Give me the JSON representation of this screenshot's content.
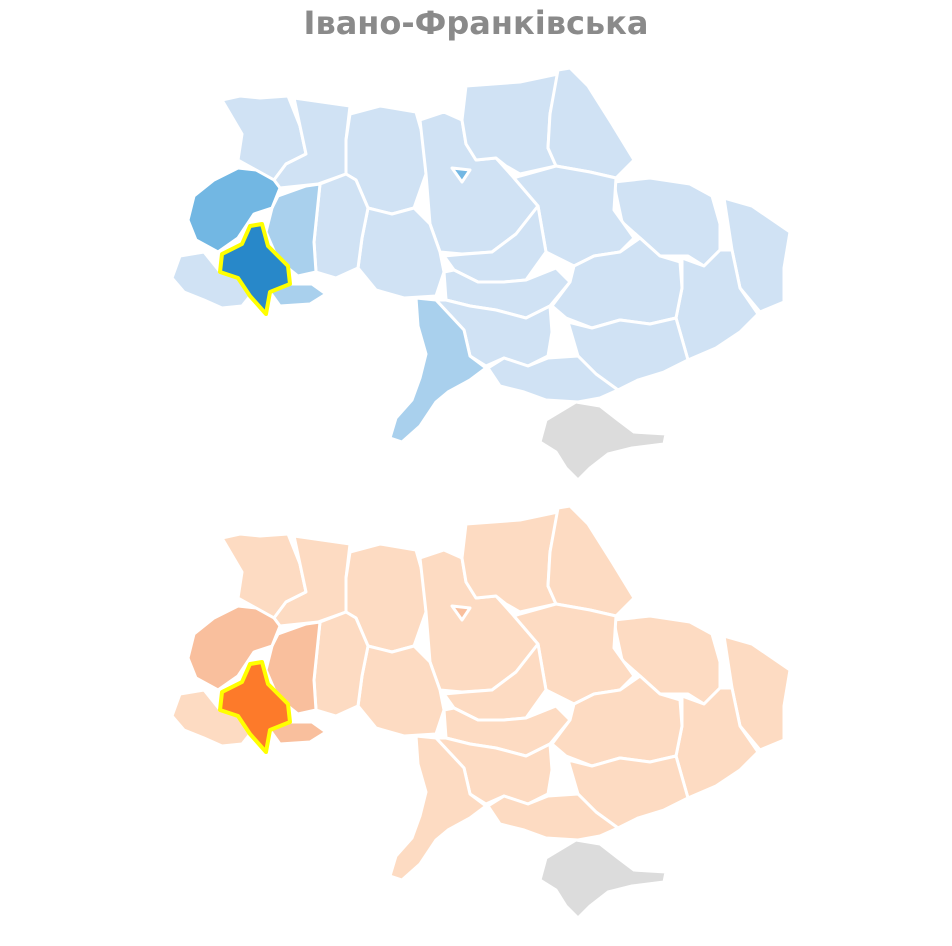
{
  "title": "Івано-Франківська",
  "colors": {
    "blue_light": "#d0e2f4",
    "blue_mid": "#a9d0ed",
    "blue_strong": "#72b7e3",
    "blue_selected": "#2888c9",
    "orange_light": "#fddbc2",
    "orange_mid": "#f9bf9d",
    "orange_selected": "#fd7a2a",
    "highlight_outline": "#ffff00",
    "crimea": "#dcdcdc",
    "border": "#ffffff"
  },
  "maps": [
    {
      "theme": "blue",
      "selected_region": "Івано-Франківська",
      "regions": [
        {
          "id": "ivano-frankivsk",
          "level": "selected"
        },
        {
          "id": "lviv",
          "level": "strong"
        },
        {
          "id": "ternopil",
          "level": "mid"
        },
        {
          "id": "chernivtsi",
          "level": "mid"
        },
        {
          "id": "odesa",
          "level": "mid"
        },
        {
          "id": "kyiv-city",
          "level": "strong"
        },
        {
          "id": "volyn",
          "level": "light"
        },
        {
          "id": "rivne",
          "level": "light"
        },
        {
          "id": "zhytomyr",
          "level": "light"
        },
        {
          "id": "kyiv",
          "level": "light"
        },
        {
          "id": "chernihiv",
          "level": "light"
        },
        {
          "id": "sumy",
          "level": "light"
        },
        {
          "id": "kharkiv",
          "level": "light"
        },
        {
          "id": "luhansk",
          "level": "light"
        },
        {
          "id": "donetsk",
          "level": "light"
        },
        {
          "id": "zakarpattia",
          "level": "light"
        },
        {
          "id": "khmelnytskyi",
          "level": "light"
        },
        {
          "id": "vinnytsia",
          "level": "light"
        },
        {
          "id": "cherkasy",
          "level": "light"
        },
        {
          "id": "poltava",
          "level": "light"
        },
        {
          "id": "kirovohrad",
          "level": "light"
        },
        {
          "id": "dnipro",
          "level": "light"
        },
        {
          "id": "zaporizhzhia",
          "level": "light"
        },
        {
          "id": "mykolaiv",
          "level": "light"
        },
        {
          "id": "kherson",
          "level": "light"
        },
        {
          "id": "crimea",
          "level": "none"
        }
      ]
    },
    {
      "theme": "orange",
      "selected_region": "Івано-Франківська",
      "regions": [
        {
          "id": "ivano-frankivsk",
          "level": "selected"
        },
        {
          "id": "lviv",
          "level": "mid"
        },
        {
          "id": "ternopil",
          "level": "mid"
        },
        {
          "id": "chernivtsi",
          "level": "mid"
        },
        {
          "id": "kyiv-city",
          "level": "mid"
        },
        {
          "id": "odesa",
          "level": "light"
        },
        {
          "id": "volyn",
          "level": "light"
        },
        {
          "id": "rivne",
          "level": "light"
        },
        {
          "id": "zhytomyr",
          "level": "light"
        },
        {
          "id": "kyiv",
          "level": "light"
        },
        {
          "id": "chernihiv",
          "level": "light"
        },
        {
          "id": "sumy",
          "level": "light"
        },
        {
          "id": "kharkiv",
          "level": "light"
        },
        {
          "id": "luhansk",
          "level": "light"
        },
        {
          "id": "donetsk",
          "level": "light"
        },
        {
          "id": "zakarpattia",
          "level": "light"
        },
        {
          "id": "khmelnytskyi",
          "level": "light"
        },
        {
          "id": "vinnytsia",
          "level": "light"
        },
        {
          "id": "cherkasy",
          "level": "light"
        },
        {
          "id": "poltava",
          "level": "light"
        },
        {
          "id": "kirovohrad",
          "level": "light"
        },
        {
          "id": "dnipro",
          "level": "light"
        },
        {
          "id": "zaporizhzhia",
          "level": "light"
        },
        {
          "id": "mykolaiv",
          "level": "light"
        },
        {
          "id": "kherson",
          "level": "light"
        },
        {
          "id": "crimea",
          "level": "none"
        }
      ]
    }
  ]
}
